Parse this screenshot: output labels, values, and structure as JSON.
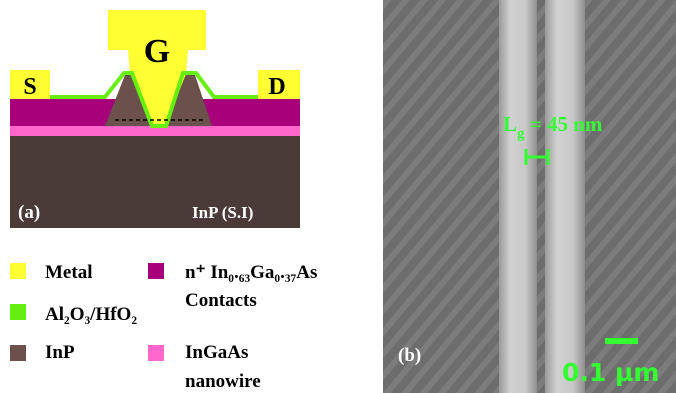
{
  "panel_a": {
    "label": "(a)",
    "substrate": "InP (S.I)",
    "source": "S",
    "gate": "G",
    "drain": "D"
  },
  "legend": [
    [
      "Metal"
    ],
    [
      "n⁺ In₀.₆₃Ga₀.₃₇As",
      "Contacts"
    ],
    [
      "Al₂O₃/HfO₂"
    ],
    [
      "InP"
    ],
    [
      "InGaAs",
      "nanowire"
    ]
  ],
  "panel_b": {
    "label": "(b)",
    "gate_length": {
      "symbol": "L",
      "subscript": "g",
      "value": " = 45 nm"
    },
    "scale_bar": "0.1 µm"
  }
}
